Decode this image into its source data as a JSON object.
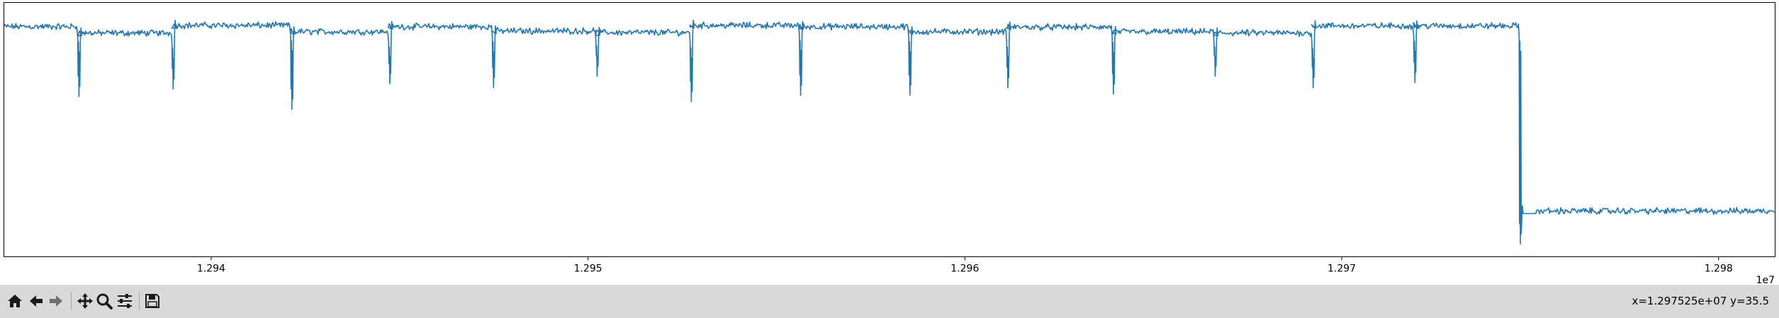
{
  "toolbar": {
    "buttons": [
      {
        "name": "home-button",
        "icon": "home-icon",
        "tooltip": "Reset original view"
      },
      {
        "name": "back-button",
        "icon": "arrow-left-icon",
        "tooltip": "Back to previous view"
      },
      {
        "name": "forward-button",
        "icon": "arrow-right-icon",
        "tooltip": "Forward to next view"
      },
      {
        "name": "pan-button",
        "icon": "move-icon",
        "tooltip": "Pan axes"
      },
      {
        "name": "zoom-button",
        "icon": "zoom-icon",
        "tooltip": "Zoom to rectangle"
      },
      {
        "name": "configure-button",
        "icon": "sliders-icon",
        "tooltip": "Configure subplots"
      },
      {
        "name": "save-button",
        "icon": "floppy-disk-icon",
        "tooltip": "Save the figure"
      }
    ],
    "coordinates": "x=1.297525e+07 y=35.5"
  },
  "chart_data": {
    "type": "line",
    "title": "",
    "xlabel": "",
    "ylabel": "",
    "x_offset_label": "1e7",
    "x_tick_labels": [
      "1.294",
      "1.295",
      "1.296",
      "1.297",
      "1.298"
    ],
    "x_ticks": [
      12940000,
      12950000,
      12960000,
      12970000,
      12980000
    ],
    "xlim": [
      12934500,
      12981500
    ],
    "ylim": [
      0,
      100
    ],
    "grid": false,
    "line_color": "#1f77b4",
    "series": [
      {
        "baseline_segments": [
          {
            "x0": 12934500,
            "x1": 12936450,
            "y": 90.5
          },
          {
            "x0": 12936450,
            "x1": 12938950,
            "y": 88.0
          },
          {
            "x0": 12938950,
            "x1": 12942100,
            "y": 91.0
          },
          {
            "x0": 12942100,
            "x1": 12944700,
            "y": 88.5
          },
          {
            "x0": 12944700,
            "x1": 12947450,
            "y": 90.5
          },
          {
            "x0": 12947450,
            "x1": 12950200,
            "y": 88.8
          },
          {
            "x0": 12950200,
            "x1": 12952700,
            "y": 88.2
          },
          {
            "x0": 12952700,
            "x1": 12955600,
            "y": 91.0
          },
          {
            "x0": 12955600,
            "x1": 12958500,
            "y": 90.5
          },
          {
            "x0": 12958500,
            "x1": 12961100,
            "y": 88.5
          },
          {
            "x0": 12961100,
            "x1": 12963900,
            "y": 90.3
          },
          {
            "x0": 12963900,
            "x1": 12966600,
            "y": 88.5
          },
          {
            "x0": 12966600,
            "x1": 12969200,
            "y": 88.0
          },
          {
            "x0": 12969200,
            "x1": 12971900,
            "y": 90.8
          },
          {
            "x0": 12971900,
            "x1": 12974700,
            "y": 90.8
          },
          {
            "x0": 12975150,
            "x1": 12981500,
            "y": 18.0
          }
        ],
        "dips": [
          {
            "x": 12936450,
            "min_y": 63.0
          },
          {
            "x": 12938950,
            "min_y": 66.0
          },
          {
            "x": 12942100,
            "min_y": 58.0
          },
          {
            "x": 12944700,
            "min_y": 68.0
          },
          {
            "x": 12947450,
            "min_y": 66.5
          },
          {
            "x": 12950200,
            "min_y": 71.0
          },
          {
            "x": 12952700,
            "min_y": 61.0
          },
          {
            "x": 12955600,
            "min_y": 63.5
          },
          {
            "x": 12958500,
            "min_y": 63.5
          },
          {
            "x": 12961100,
            "min_y": 66.5
          },
          {
            "x": 12963900,
            "min_y": 64.0
          },
          {
            "x": 12966600,
            "min_y": 71.0
          },
          {
            "x": 12969200,
            "min_y": 66.5
          },
          {
            "x": 12971900,
            "min_y": 68.5
          },
          {
            "x": 12974700,
            "min_y": 5.0
          }
        ]
      }
    ]
  }
}
